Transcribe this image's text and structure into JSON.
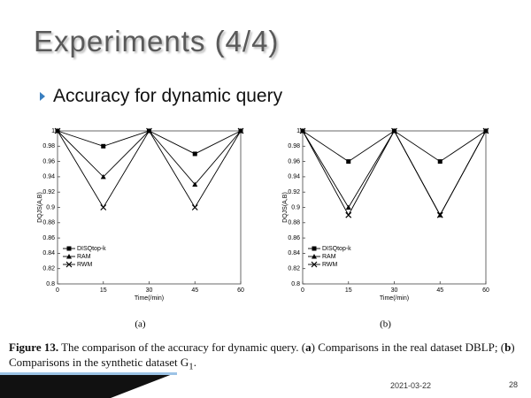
{
  "title": "Experiments (4/4)",
  "bullet": "Accuracy for dynamic query",
  "chart_data": [
    {
      "type": "line",
      "x": [
        0,
        15,
        30,
        45,
        60
      ],
      "xlim": [
        0,
        60
      ],
      "xticks": [
        0,
        15,
        30,
        45,
        60
      ],
      "ylim": [
        0.8,
        1
      ],
      "yticks": [
        0.8,
        0.82,
        0.84,
        0.86,
        0.88,
        0.9,
        0.92,
        0.94,
        0.96,
        0.98,
        1
      ],
      "x_label": "Time(/min)",
      "y_label": "DQJS(A,B)",
      "subcaption": "(a)",
      "series": [
        {
          "name": "DISQtop-k",
          "color": "#000000",
          "marker": "square",
          "values": [
            1,
            0.98,
            1,
            0.97,
            1
          ]
        },
        {
          "name": "RAM",
          "color": "#000000",
          "marker": "triangle",
          "values": [
            1,
            0.94,
            1,
            0.93,
            1
          ]
        },
        {
          "name": "RWM",
          "color": "#000000",
          "marker": "x",
          "values": [
            1,
            0.9,
            1,
            0.9,
            1
          ]
        }
      ]
    },
    {
      "type": "line",
      "x": [
        0,
        15,
        30,
        45,
        60
      ],
      "xlim": [
        0,
        60
      ],
      "xticks": [
        0,
        15,
        30,
        45,
        60
      ],
      "ylim": [
        0.8,
        1
      ],
      "yticks": [
        0.8,
        0.82,
        0.84,
        0.86,
        0.88,
        0.9,
        0.92,
        0.94,
        0.96,
        0.98,
        1
      ],
      "x_label": "Time(/min)",
      "y_label": "DQJS(A,B)",
      "subcaption": "(b)",
      "series": [
        {
          "name": "DISQtop-k",
          "color": "#000000",
          "marker": "square",
          "values": [
            1,
            0.96,
            1,
            0.96,
            1
          ]
        },
        {
          "name": "RAM",
          "color": "#000000",
          "marker": "triangle",
          "values": [
            1,
            0.9,
            1,
            0.89,
            1
          ]
        },
        {
          "name": "RWM",
          "color": "#000000",
          "marker": "x",
          "values": [
            1,
            0.89,
            1,
            0.89,
            1
          ]
        }
      ]
    }
  ],
  "caption": [
    "Figure 13.",
    " The comparison of the accuracy for dynamic query. (",
    "a",
    ") Comparisons in the real dataset DBLP; (",
    "b",
    ") Comparisons in the synthetic dataset G",
    "1",
    "."
  ],
  "date": "2021-03-22",
  "page": "28"
}
